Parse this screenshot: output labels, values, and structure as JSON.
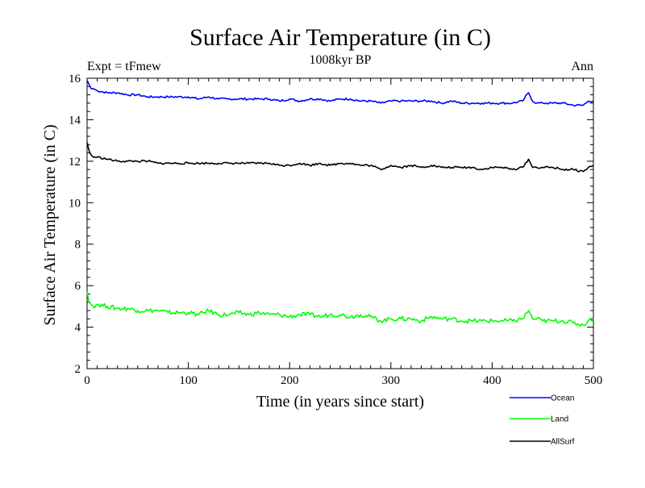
{
  "chart_data": {
    "type": "line",
    "title": "Surface Air Temperature (in C)",
    "subtitle": "1008kyr BP",
    "left_annotation": "Expt = tFmew",
    "right_annotation": "Ann",
    "xlabel": "Time (in years since start)",
    "ylabel": "Surface Air Temperature (in C)",
    "xlim": [
      0,
      500
    ],
    "ylim": [
      2,
      16
    ],
    "x_ticks": [
      0,
      100,
      200,
      300,
      400,
      500
    ],
    "y_ticks": [
      2,
      4,
      6,
      8,
      10,
      12,
      14,
      16
    ],
    "grid": false,
    "legend_position": "bottom-right",
    "series": [
      {
        "name": "Ocean",
        "color": "#0000ff",
        "x": [
          0,
          2,
          4,
          6,
          10,
          20,
          30,
          40,
          50,
          60,
          70,
          80,
          90,
          100,
          110,
          120,
          130,
          140,
          150,
          160,
          170,
          180,
          190,
          200,
          210,
          220,
          230,
          240,
          250,
          260,
          270,
          280,
          290,
          300,
          310,
          320,
          330,
          340,
          350,
          360,
          370,
          380,
          390,
          400,
          410,
          420,
          430,
          436,
          440,
          444,
          450,
          460,
          470,
          480,
          490,
          495,
          500
        ],
        "values": [
          15.9,
          15.7,
          15.5,
          15.5,
          15.4,
          15.3,
          15.3,
          15.2,
          15.2,
          15.1,
          15.1,
          15.1,
          15.1,
          15.1,
          15.0,
          15.1,
          15.0,
          15.0,
          15.0,
          15.0,
          15.0,
          15.0,
          14.9,
          15.0,
          14.9,
          15.0,
          15.0,
          14.9,
          15.0,
          15.0,
          14.9,
          14.9,
          14.8,
          14.9,
          14.9,
          14.9,
          14.9,
          14.9,
          14.8,
          14.9,
          14.8,
          14.8,
          14.8,
          14.8,
          14.8,
          14.8,
          14.9,
          15.3,
          14.9,
          14.8,
          14.8,
          14.8,
          14.8,
          14.7,
          14.7,
          14.9,
          14.9
        ]
      },
      {
        "name": "Land",
        "color": "#00ff00",
        "x": [
          0,
          2,
          4,
          6,
          10,
          20,
          30,
          40,
          50,
          60,
          70,
          80,
          90,
          100,
          110,
          120,
          130,
          140,
          150,
          160,
          170,
          180,
          190,
          200,
          210,
          220,
          230,
          240,
          250,
          260,
          270,
          280,
          290,
          300,
          310,
          320,
          330,
          340,
          350,
          360,
          370,
          380,
          390,
          400,
          410,
          420,
          430,
          436,
          440,
          444,
          450,
          460,
          470,
          480,
          490,
          495,
          500
        ],
        "values": [
          5.7,
          5.2,
          5.1,
          5.0,
          5.1,
          5.0,
          4.9,
          4.9,
          4.8,
          4.8,
          4.8,
          4.7,
          4.7,
          4.7,
          4.6,
          4.8,
          4.6,
          4.6,
          4.7,
          4.6,
          4.7,
          4.6,
          4.6,
          4.5,
          4.6,
          4.6,
          4.5,
          4.6,
          4.6,
          4.5,
          4.6,
          4.5,
          4.3,
          4.4,
          4.4,
          4.4,
          4.3,
          4.5,
          4.4,
          4.4,
          4.3,
          4.3,
          4.3,
          4.3,
          4.3,
          4.3,
          4.4,
          4.8,
          4.4,
          4.4,
          4.3,
          4.3,
          4.3,
          4.2,
          4.1,
          4.3,
          4.4
        ]
      },
      {
        "name": "AllSurf",
        "color": "#000000",
        "x": [
          0,
          2,
          4,
          6,
          10,
          20,
          30,
          40,
          50,
          60,
          70,
          80,
          90,
          100,
          110,
          120,
          130,
          140,
          150,
          160,
          170,
          180,
          190,
          200,
          210,
          220,
          230,
          240,
          250,
          260,
          270,
          280,
          290,
          300,
          310,
          320,
          330,
          340,
          350,
          360,
          370,
          380,
          390,
          400,
          410,
          420,
          430,
          436,
          440,
          444,
          450,
          460,
          470,
          480,
          490,
          495,
          500
        ],
        "values": [
          12.9,
          12.5,
          12.3,
          12.2,
          12.2,
          12.1,
          12.0,
          12.0,
          12.0,
          12.0,
          11.9,
          11.9,
          11.9,
          11.9,
          11.9,
          11.9,
          11.9,
          11.9,
          11.9,
          11.9,
          11.9,
          11.9,
          11.8,
          11.8,
          11.9,
          11.8,
          11.9,
          11.8,
          11.9,
          11.9,
          11.8,
          11.8,
          11.6,
          11.8,
          11.7,
          11.8,
          11.7,
          11.8,
          11.7,
          11.7,
          11.7,
          11.7,
          11.6,
          11.7,
          11.7,
          11.6,
          11.7,
          12.1,
          11.7,
          11.7,
          11.7,
          11.7,
          11.6,
          11.6,
          11.5,
          11.7,
          11.8
        ]
      }
    ]
  }
}
